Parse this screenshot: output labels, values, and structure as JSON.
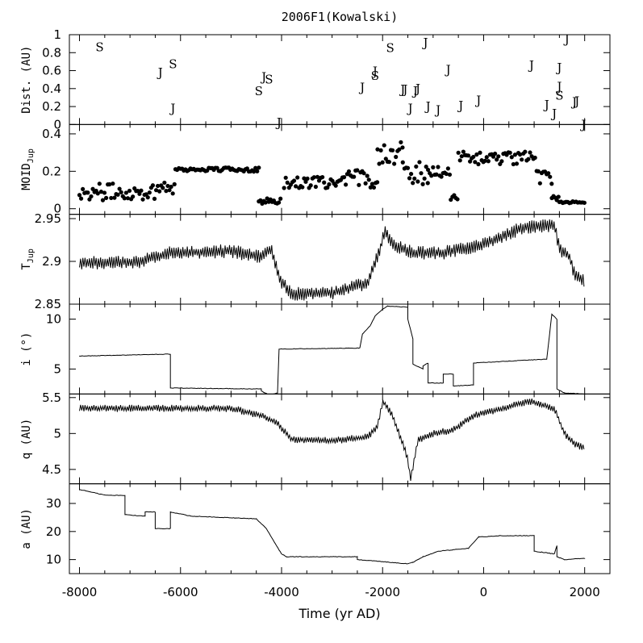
{
  "chart_data": {
    "type": "line",
    "title": "2006F1(Kowalski)",
    "xlabel": "Time (yr AD)",
    "xlim": [
      -8200,
      2500
    ],
    "xticks": [
      -8000,
      -6000,
      -4000,
      -2000,
      0,
      2000
    ],
    "panels": [
      {
        "id": "dist",
        "kind": "letters",
        "ylabel": "Dist. (AU)",
        "ylim": [
          0,
          1
        ],
        "yticks": [
          0,
          0.2,
          0.4,
          0.6,
          0.8,
          1
        ],
        "points": [
          {
            "x": -7600,
            "y": 0.86,
            "label": "S"
          },
          {
            "x": -6400,
            "y": 0.58,
            "label": "J"
          },
          {
            "x": -6150,
            "y": 0.67,
            "label": "S"
          },
          {
            "x": -6150,
            "y": 0.18,
            "label": "J"
          },
          {
            "x": -4450,
            "y": 0.37,
            "label": "S"
          },
          {
            "x": -4350,
            "y": 0.53,
            "label": "J"
          },
          {
            "x": -4250,
            "y": 0.5,
            "label": "S"
          },
          {
            "x": -4050,
            "y": 0.02,
            "label": "J"
          },
          {
            "x": -2400,
            "y": 0.41,
            "label": "J"
          },
          {
            "x": -2150,
            "y": 0.59,
            "label": "J"
          },
          {
            "x": -2150,
            "y": 0.54,
            "label": "S"
          },
          {
            "x": -1850,
            "y": 0.85,
            "label": "S"
          },
          {
            "x": -1600,
            "y": 0.39,
            "label": "J"
          },
          {
            "x": -1550,
            "y": 0.39,
            "label": "J"
          },
          {
            "x": -1450,
            "y": 0.18,
            "label": "J"
          },
          {
            "x": -1350,
            "y": 0.37,
            "label": "J"
          },
          {
            "x": -1300,
            "y": 0.4,
            "label": "J"
          },
          {
            "x": -1150,
            "y": 0.91,
            "label": "J"
          },
          {
            "x": -1100,
            "y": 0.2,
            "label": "J"
          },
          {
            "x": -900,
            "y": 0.16,
            "label": "J"
          },
          {
            "x": -700,
            "y": 0.61,
            "label": "J"
          },
          {
            "x": -450,
            "y": 0.21,
            "label": "J"
          },
          {
            "x": -100,
            "y": 0.27,
            "label": "J"
          },
          {
            "x": 950,
            "y": 0.66,
            "label": "J"
          },
          {
            "x": 1250,
            "y": 0.22,
            "label": "J"
          },
          {
            "x": 1400,
            "y": 0.12,
            "label": "J"
          },
          {
            "x": 1500,
            "y": 0.63,
            "label": "J"
          },
          {
            "x": 1500,
            "y": 0.42,
            "label": "J"
          },
          {
            "x": 1500,
            "y": 0.32,
            "label": "S"
          },
          {
            "x": 1650,
            "y": 0.95,
            "label": "J"
          },
          {
            "x": 1800,
            "y": 0.25,
            "label": "J"
          },
          {
            "x": 1850,
            "y": 0.26,
            "label": "J"
          },
          {
            "x": 1980,
            "y": 0.0,
            "label": "J"
          }
        ]
      },
      {
        "id": "moid",
        "kind": "dots",
        "ylabel": "MOID",
        "ylabel_sub": "Jup",
        "ylim": [
          -0.03,
          0.45
        ],
        "yticks": [
          0,
          0.2,
          0.4
        ],
        "segments": [
          {
            "x0": -8000,
            "x1": -6450,
            "base": 0.09,
            "amp": 0.045
          },
          {
            "x0": -6450,
            "x1": -6100,
            "base": 0.12,
            "amp": 0.04
          },
          {
            "x0": -6100,
            "x1": -4450,
            "base": 0.21,
            "amp": 0.012
          },
          {
            "x0": -4450,
            "x1": -4000,
            "base": 0.04,
            "amp": 0.015
          },
          {
            "x0": -3950,
            "x1": -2700,
            "base": 0.14,
            "amp": 0.03
          },
          {
            "x0": -2700,
            "x1": -2100,
            "base": 0.16,
            "amp": 0.05
          },
          {
            "x0": -2100,
            "x1": -1600,
            "base": 0.3,
            "amp": 0.06
          },
          {
            "x0": -1600,
            "x1": -1100,
            "base": 0.19,
            "amp": 0.06
          },
          {
            "x0": -1100,
            "x1": -650,
            "base": 0.2,
            "amp": 0.03
          },
          {
            "x0": -650,
            "x1": -500,
            "base": 0.06,
            "amp": 0.02
          },
          {
            "x0": -500,
            "x1": 1050,
            "base": 0.27,
            "amp": 0.035
          },
          {
            "x0": 1050,
            "x1": 1350,
            "base": 0.17,
            "amp": 0.04
          },
          {
            "x0": 1350,
            "x1": 1500,
            "base": 0.06,
            "amp": 0.03
          },
          {
            "x0": 1500,
            "x1": 2000,
            "base": 0.035,
            "amp": 0.005
          }
        ]
      },
      {
        "id": "tjup",
        "kind": "line",
        "ylabel": "T",
        "ylabel_sub": "Jup",
        "ylim": [
          2.85,
          2.955
        ],
        "yticks": [
          2.85,
          2.9,
          2.95
        ],
        "knots": [
          [
            -8000,
            2.898
          ],
          [
            -6800,
            2.9
          ],
          [
            -6200,
            2.91
          ],
          [
            -5000,
            2.912
          ],
          [
            -4400,
            2.905
          ],
          [
            -4200,
            2.915
          ],
          [
            -4050,
            2.88
          ],
          [
            -3800,
            2.862
          ],
          [
            -3000,
            2.863
          ],
          [
            -2300,
            2.875
          ],
          [
            -2050,
            2.915
          ],
          [
            -1950,
            2.935
          ],
          [
            -1800,
            2.92
          ],
          [
            -1400,
            2.91
          ],
          [
            -800,
            2.91
          ],
          [
            0,
            2.92
          ],
          [
            800,
            2.94
          ],
          [
            1400,
            2.942
          ],
          [
            1500,
            2.915
          ],
          [
            1700,
            2.905
          ],
          [
            1800,
            2.885
          ],
          [
            2000,
            2.878
          ]
        ],
        "noise": 0.008
      },
      {
        "id": "incl",
        "kind": "step",
        "ylabel": "i (°)",
        "ylim": [
          2.5,
          11.5
        ],
        "yticks": [
          5,
          10
        ],
        "knots": [
          [
            -8000,
            6.3
          ],
          [
            -6200,
            6.5
          ],
          [
            -6200,
            3.1
          ],
          [
            -4400,
            3.0
          ],
          [
            -4400,
            2.8
          ],
          [
            -4250,
            2.4
          ],
          [
            -4080,
            2.6
          ],
          [
            -4050,
            7.0
          ],
          [
            -2450,
            7.1
          ],
          [
            -2400,
            8.5
          ],
          [
            -2250,
            9.3
          ],
          [
            -2150,
            10.3
          ],
          [
            -2000,
            11.0
          ],
          [
            -1900,
            11.3
          ],
          [
            -1500,
            11.2
          ],
          [
            -1500,
            10.0
          ],
          [
            -1400,
            8.0
          ],
          [
            -1400,
            5.5
          ],
          [
            -1200,
            5.0
          ],
          [
            -1200,
            5.3
          ],
          [
            -1100,
            5.6
          ],
          [
            -1100,
            3.6
          ],
          [
            -800,
            3.6
          ],
          [
            -800,
            4.5
          ],
          [
            -600,
            4.5
          ],
          [
            -600,
            3.3
          ],
          [
            -200,
            3.4
          ],
          [
            -200,
            5.6
          ],
          [
            1250,
            6.0
          ],
          [
            1350,
            10.5
          ],
          [
            1450,
            10.0
          ],
          [
            1450,
            3.0
          ],
          [
            1600,
            2.6
          ],
          [
            2000,
            2.5
          ]
        ],
        "noise": 0.05
      },
      {
        "id": "q",
        "kind": "line",
        "ylabel": "q (AU)",
        "ylim": [
          4.3,
          5.55
        ],
        "yticks": [
          4.5,
          5,
          5.5
        ],
        "knots": [
          [
            -8000,
            5.35
          ],
          [
            -5000,
            5.35
          ],
          [
            -4400,
            5.25
          ],
          [
            -4100,
            5.15
          ],
          [
            -3800,
            4.92
          ],
          [
            -3000,
            4.9
          ],
          [
            -2300,
            4.95
          ],
          [
            -2100,
            5.1
          ],
          [
            -2000,
            5.45
          ],
          [
            -1800,
            5.25
          ],
          [
            -1600,
            4.85
          ],
          [
            -1500,
            4.65
          ],
          [
            -1450,
            4.35
          ],
          [
            -1300,
            4.9
          ],
          [
            -1000,
            5.0
          ],
          [
            -600,
            5.05
          ],
          [
            -200,
            5.25
          ],
          [
            400,
            5.35
          ],
          [
            900,
            5.45
          ],
          [
            1400,
            5.35
          ],
          [
            1600,
            5.0
          ],
          [
            1800,
            4.85
          ],
          [
            2000,
            4.8
          ]
        ],
        "noise": 0.05
      },
      {
        "id": "a",
        "kind": "step",
        "ylabel": "a (AU)",
        "ylim": [
          5,
          37
        ],
        "yticks": [
          10,
          20,
          30
        ],
        "knots": [
          [
            -8000,
            35.0
          ],
          [
            -7500,
            33.0
          ],
          [
            -7100,
            32.8
          ],
          [
            -7100,
            26.0
          ],
          [
            -6700,
            25.5
          ],
          [
            -6700,
            27.0
          ],
          [
            -6500,
            27.0
          ],
          [
            -6500,
            21.0
          ],
          [
            -6200,
            21.0
          ],
          [
            -6200,
            27.0
          ],
          [
            -5800,
            25.5
          ],
          [
            -4500,
            24.5
          ],
          [
            -4300,
            21.0
          ],
          [
            -4000,
            12.0
          ],
          [
            -3900,
            11.0
          ],
          [
            -2500,
            11.0
          ],
          [
            -2500,
            10.0
          ],
          [
            -1500,
            8.5
          ],
          [
            -1400,
            9.0
          ],
          [
            -1200,
            11.0
          ],
          [
            -900,
            13.0
          ],
          [
            -300,
            14.0
          ],
          [
            -100,
            18.0
          ],
          [
            300,
            18.5
          ],
          [
            1000,
            18.5
          ],
          [
            1000,
            13.0
          ],
          [
            1400,
            12.0
          ],
          [
            1450,
            15.0
          ],
          [
            1450,
            11.0
          ],
          [
            1600,
            10.0
          ],
          [
            2000,
            10.5
          ]
        ],
        "noise": 0.2
      }
    ]
  }
}
